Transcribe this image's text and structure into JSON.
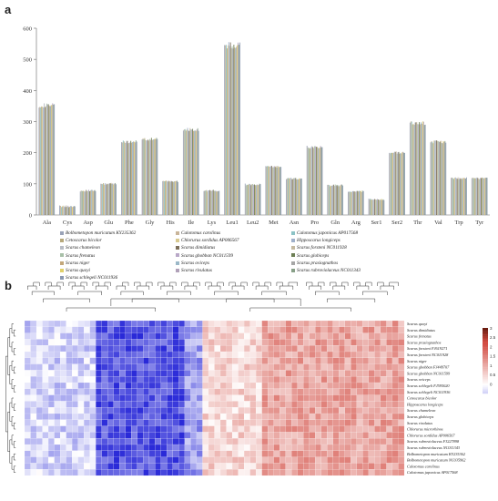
{
  "panels": {
    "a": "a",
    "b": "b"
  },
  "colors": {
    "series": [
      "#9aa3b8",
      "#c9b59a",
      "#8cc3c6",
      "#b7a97c",
      "#d8c98f",
      "#9fb0ca",
      "#b8bcc4",
      "#7c6f5a",
      "#c4b9a0",
      "#a8c0a8",
      "#b9a8c8",
      "#6d7f55",
      "#c3a77a",
      "#9bb8c8",
      "#a6a6a6",
      "#e0d06a",
      "#b0a0b8",
      "#88a088",
      "#8a98b0",
      "#c8c070"
    ],
    "heat_low": "#2a2ad8",
    "heat_mid": "#ffffff",
    "heat_high": "#d24a40",
    "heat_top": "#6b1c10"
  },
  "chart_data": [
    {
      "type": "bar",
      "title": "",
      "xlabel": "",
      "ylabel": "",
      "ylim": [
        0,
        600
      ],
      "yticks": [
        0,
        100,
        200,
        300,
        400,
        500,
        600
      ],
      "categories": [
        "Ala",
        "Cys",
        "Asp",
        "Glu",
        "Phe",
        "Gly",
        "His",
        "Ile",
        "Lys",
        "Leu1",
        "Leu2",
        "Met",
        "Asn",
        "Pro",
        "Gln",
        "Arg",
        "Ser1",
        "Ser2",
        "Thr",
        "Val",
        "Trp",
        "Tyr"
      ],
      "category_means": [
        352,
        28,
        78,
        100,
        235,
        243,
        108,
        275,
        78,
        545,
        98,
        155,
        117,
        218,
        95,
        75,
        50,
        200,
        295,
        235,
        118,
        118
      ],
      "series": [
        {
          "name": "Bolbometopon muricatum KY235362"
        },
        {
          "name": "Calotomus carolinus"
        },
        {
          "name": "Calotomus japonicus AP017568"
        },
        {
          "name": "Cetoscarus bicolor"
        },
        {
          "name": "Chlorurus sordidus AP006567"
        },
        {
          "name": "Hipposcarus longiceps"
        },
        {
          "name": "Scarus chameleon"
        },
        {
          "name": "Scarus dimidiatus"
        },
        {
          "name": "Scarus forsteni NC011928"
        },
        {
          "name": "Scarus frenatus"
        },
        {
          "name": "Scarus ghobban NC011599"
        },
        {
          "name": "Scarus globiceps"
        },
        {
          "name": "Scarus niger"
        },
        {
          "name": "Scarus oviceps"
        },
        {
          "name": "Scarus prasiognathos"
        },
        {
          "name": "Scarus quoyi"
        },
        {
          "name": "Scarus rivulatus"
        },
        {
          "name": "Scarus rubroviolaceus NC011343"
        },
        {
          "name": "Scarus schlegeli NC011936"
        }
      ],
      "legend_position": "bottom"
    },
    {
      "type": "heatmap",
      "rows": [
        "Scarus quoyi",
        "Scarus dimidiatus",
        "Scarus frenatus",
        "Scarus prasiognathos",
        "Scarus forsteni FJ619271",
        "Scarus forsteni NC011928",
        "Scarus niger",
        "Scarus ghobban FJ449707",
        "Scarus ghobban NC011599",
        "Scarus oviceps",
        "Scarus schlegeli FJ595020",
        "Scarus schlegeli NC011936",
        "Cetoscarus bicolor",
        "Hipposcarus longiceps",
        "Scarus chameleon",
        "Scarus globiceps",
        "Scarus rivulatus",
        "Chlorurus microrhinos",
        "Chlorurus sordidus AP006567",
        "Scarus rubroviolaceus FJ227898",
        "Scarus rubroviolaceus NC011343",
        "Bolbometopon muricatum KY235362",
        "Bolbometopon muricatum NC035962",
        "Calotomus carolinus",
        "Calotomus japonicus AP017568"
      ],
      "n_columns": 64,
      "column_group_means": [
        -0.4,
        -1.6,
        -0.9,
        0.5,
        1.1
      ],
      "colorbar_ticks": [
        3,
        2.5,
        2,
        1.5,
        1,
        0.5,
        0
      ],
      "colorbar_range": [
        -0.5,
        3
      ],
      "legend_position": "right"
    }
  ]
}
